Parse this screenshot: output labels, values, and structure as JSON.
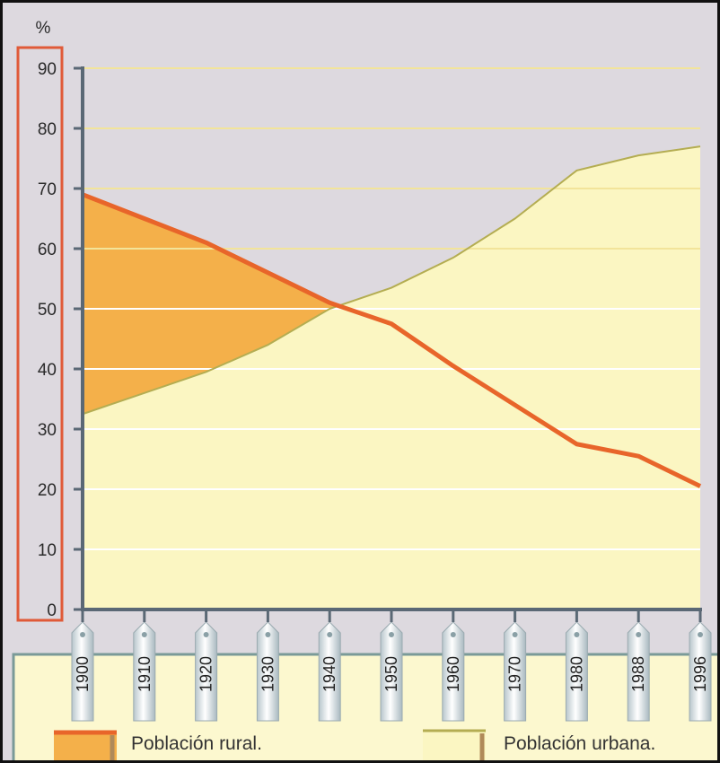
{
  "chart_data": {
    "type": "area",
    "unit_label": "%",
    "x": [
      "1900",
      "1910",
      "1920",
      "1930",
      "1940",
      "1950",
      "1960",
      "1970",
      "1980",
      "1988",
      "1996"
    ],
    "series": [
      {
        "name": "Población rural.",
        "values": [
          69,
          65,
          61,
          56,
          51,
          47.5,
          40.5,
          34,
          27.5,
          25.5,
          20.5
        ],
        "color": "#e8652a",
        "fill": "#f4b04a"
      },
      {
        "name": "Población urbana.",
        "values": [
          32.5,
          36,
          39.5,
          44,
          50,
          53.5,
          58.5,
          65,
          73,
          75.5,
          77
        ],
        "color": "#b4ad52",
        "fill": "#fbf6c2"
      }
    ],
    "yticks": [
      0,
      10,
      20,
      30,
      40,
      50,
      60,
      70,
      80,
      90
    ],
    "ylim": [
      0,
      90
    ],
    "grid": true,
    "legend_position": "bottom"
  },
  "colors": {
    "background": "#ddd9df",
    "grid_line": "#ffffff",
    "grid_line_upper": "#f2e49a",
    "axis": "#5a6875",
    "y_label_border": "#e05a38",
    "legend_panel": "#fcf8cf",
    "legend_panel_border": "#7a9a98",
    "tab_fill": "#e6eef0"
  }
}
